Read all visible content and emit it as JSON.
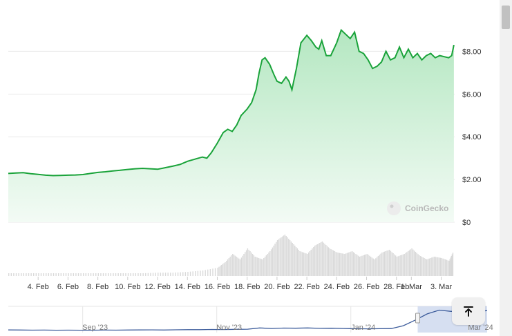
{
  "chart_data": {
    "type": "area",
    "y_ticks": [
      "$0",
      "$2.00",
      "$4.00",
      "$6.00",
      "$8.00"
    ],
    "y_tick_values": [
      0,
      2,
      4,
      6,
      8
    ],
    "ylim": [
      0,
      9.5
    ],
    "x_ticks": [
      "4. Feb",
      "6. Feb",
      "8. Feb",
      "10. Feb",
      "12. Feb",
      "14. Feb",
      "16. Feb",
      "18. Feb",
      "20. Feb",
      "22. Feb",
      "24. Feb",
      "26. Feb",
      "28. Feb",
      "1. Mar",
      "3. Mar"
    ],
    "x_tick_days": [
      2,
      4,
      6,
      8,
      10,
      12,
      14,
      16,
      18,
      20,
      22,
      24,
      26,
      27,
      29
    ],
    "x_range_days": [
      0,
      29.9
    ],
    "series": [
      {
        "x": [
          0,
          0.5,
          1,
          1.5,
          2,
          2.5,
          3,
          3.5,
          4,
          4.5,
          5,
          5.5,
          6,
          6.5,
          7,
          7.5,
          8,
          8.5,
          9,
          9.5,
          10,
          10.5,
          11,
          11.5,
          12,
          12.5,
          13,
          13.3,
          13.6,
          14,
          14.4,
          14.7,
          15,
          15.3,
          15.6,
          16,
          16.3,
          16.6,
          16.8,
          17,
          17.2,
          17.5,
          17.8,
          18,
          18.3,
          18.6,
          18.8,
          19,
          19.3,
          19.6,
          20,
          20.3,
          20.6,
          20.8,
          21,
          21.3,
          21.6,
          22,
          22.3,
          22.6,
          22.9,
          23.2,
          23.5,
          23.8,
          24.1,
          24.4,
          24.7,
          25,
          25.3,
          25.6,
          25.9,
          26.2,
          26.5,
          26.8,
          27.1,
          27.4,
          27.7,
          28,
          28.3,
          28.6,
          28.9,
          29.2,
          29.5,
          29.7,
          29.85
        ],
        "values": [
          2.28,
          2.3,
          2.32,
          2.27,
          2.24,
          2.2,
          2.18,
          2.19,
          2.2,
          2.21,
          2.23,
          2.28,
          2.33,
          2.36,
          2.4,
          2.43,
          2.47,
          2.5,
          2.52,
          2.5,
          2.48,
          2.55,
          2.62,
          2.7,
          2.85,
          2.95,
          3.05,
          3.0,
          3.25,
          3.7,
          4.2,
          4.35,
          4.25,
          4.55,
          5.0,
          5.3,
          5.6,
          6.2,
          7.0,
          7.6,
          7.7,
          7.4,
          6.9,
          6.6,
          6.5,
          6.8,
          6.6,
          6.2,
          7.2,
          8.4,
          8.75,
          8.5,
          8.2,
          8.1,
          8.5,
          7.8,
          7.8,
          8.4,
          9.0,
          8.8,
          8.6,
          8.9,
          8.0,
          7.9,
          7.6,
          7.2,
          7.3,
          7.5,
          8.0,
          7.6,
          7.7,
          8.2,
          7.7,
          8.1,
          7.7,
          7.9,
          7.6,
          7.8,
          7.9,
          7.7,
          7.8,
          7.75,
          7.7,
          7.8,
          8.3
        ]
      }
    ],
    "volume": {
      "x": [
        0,
        1,
        2,
        3,
        4,
        5,
        6,
        7,
        8,
        9,
        10,
        11,
        12,
        13,
        14,
        14.5,
        15,
        15.5,
        16,
        16.5,
        17,
        17.5,
        18,
        18.5,
        19,
        19.5,
        20,
        20.5,
        21,
        21.5,
        22,
        22.5,
        23,
        23.5,
        24,
        24.5,
        25,
        25.5,
        26,
        26.5,
        27,
        27.5,
        28,
        28.5,
        29,
        29.5,
        29.8
      ],
      "values": [
        0.1,
        0.1,
        0.1,
        0.1,
        0.1,
        0.1,
        0.1,
        0.1,
        0.1,
        0.1,
        0.12,
        0.12,
        0.15,
        0.2,
        0.3,
        0.5,
        0.8,
        0.6,
        1.0,
        0.7,
        0.6,
        0.9,
        1.3,
        1.5,
        1.2,
        0.9,
        0.8,
        1.1,
        1.25,
        1.0,
        0.85,
        0.8,
        0.9,
        0.7,
        0.8,
        0.6,
        0.85,
        0.95,
        0.7,
        0.8,
        1.0,
        0.75,
        0.6,
        0.7,
        0.65,
        0.55,
        0.9
      ]
    },
    "navigator": {
      "labels": [
        "Sep '23",
        "Nov '23",
        "Jan '24",
        "Mar '24"
      ],
      "label_positions": [
        0.19,
        0.47,
        0.75,
        0.995
      ],
      "values": [
        0.5,
        0.48,
        0.42,
        0.45,
        0.4,
        0.42,
        0.38,
        0.4,
        0.45,
        0.42,
        0.46,
        0.5,
        0.52,
        0.48,
        0.55,
        0.6,
        0.62,
        0.7,
        0.68,
        0.75,
        0.8,
        1.3,
        1.1,
        1.25,
        1.2,
        1.3,
        1.15,
        1.2,
        1.1,
        1.0,
        0.95,
        1.0,
        1.05,
        2.2,
        4.5,
        7.0,
        8.5,
        8.0,
        8.2,
        7.8,
        8.3
      ],
      "selection": [
        0.855,
        1.0
      ]
    },
    "watermark": "CoinGecko",
    "colors": {
      "line": "#1aa33a",
      "fill_top": "#b4e7c1",
      "fill_bottom": "#f3fbf5",
      "volume": "#d9d9d9",
      "grid": "#e9e9e9",
      "nav_line": "#3a5a9a",
      "nav_selection": "#cfd9ee"
    }
  },
  "icons": {
    "scroll_top": "arrow-up-to-line-icon"
  }
}
